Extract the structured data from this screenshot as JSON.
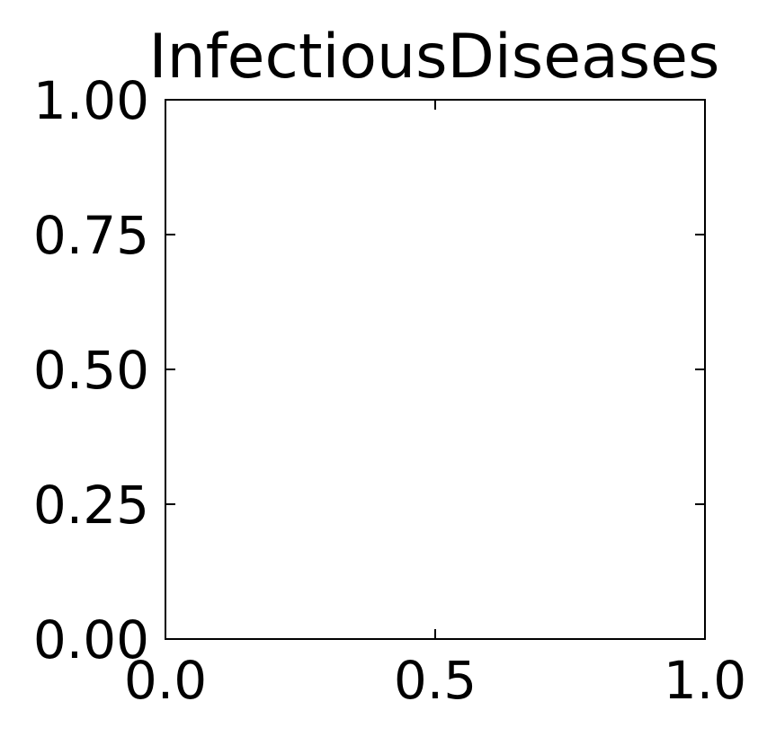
{
  "chart_data": {
    "type": "scatter",
    "title": "InfectiousDiseases",
    "xlabel": "",
    "ylabel": "",
    "xlim": [
      0.0,
      1.0
    ],
    "ylim": [
      0.0,
      1.0
    ],
    "x_ticks": [
      0.0,
      0.5,
      1.0
    ],
    "x_tick_labels": [
      "0.0",
      "0.5",
      "1.0"
    ],
    "y_ticks": [
      0.0,
      0.25,
      0.5,
      0.75,
      1.0
    ],
    "y_tick_labels": [
      "0.00",
      "0.25",
      "0.50",
      "0.75",
      "1.00"
    ],
    "tick_direction": "in",
    "mirror_ticks": true,
    "grid": false,
    "legend": "none",
    "series": []
  }
}
